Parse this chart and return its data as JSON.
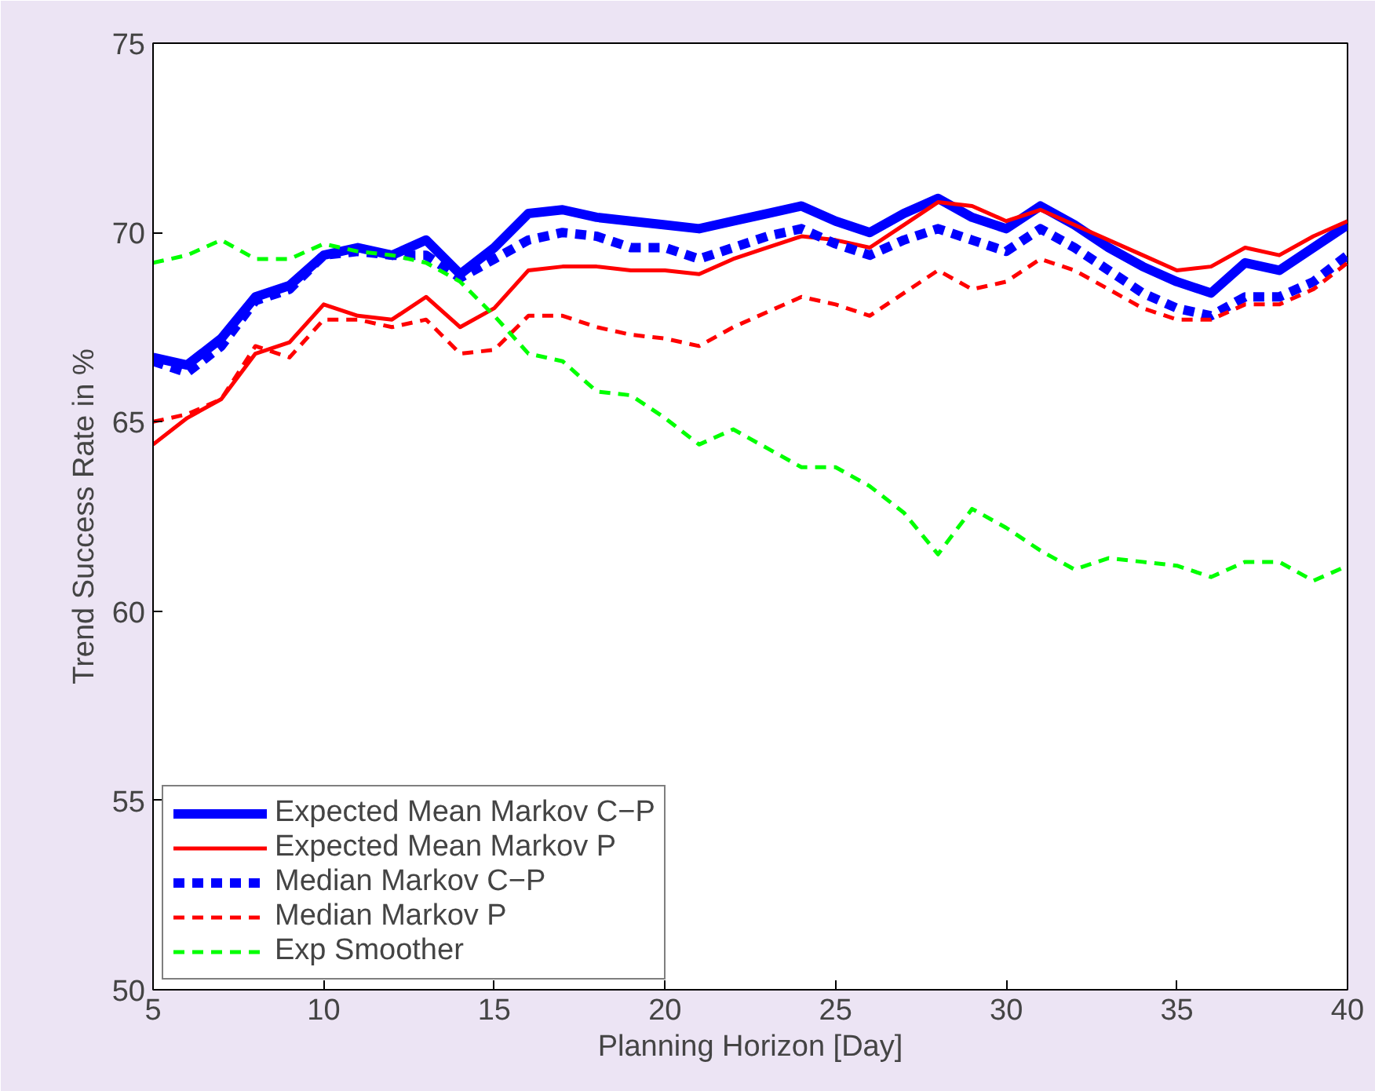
{
  "chart_data": {
    "type": "line",
    "xlabel": "Planning Horizon [Day]",
    "ylabel": "Trend Success Rate in %",
    "x": [
      5,
      6,
      7,
      8,
      9,
      10,
      11,
      12,
      13,
      14,
      15,
      16,
      17,
      18,
      19,
      20,
      21,
      22,
      23,
      24,
      25,
      26,
      27,
      28,
      29,
      30,
      31,
      32,
      33,
      34,
      35,
      36,
      37,
      38,
      39,
      40
    ],
    "xlim": [
      5,
      40
    ],
    "ylim": [
      50,
      75
    ],
    "xticks": [
      5,
      10,
      15,
      20,
      25,
      30,
      35,
      40
    ],
    "yticks": [
      50,
      55,
      60,
      65,
      70,
      75
    ],
    "grid": false,
    "legend": "bottom left",
    "marker": "none",
    "series": [
      {
        "name": "Expected Mean Markov C−P",
        "color": "#0000ff",
        "line_style": "solid",
        "values": [
          66.7,
          66.5,
          67.2,
          68.3,
          68.6,
          69.4,
          69.6,
          69.4,
          69.8,
          68.9,
          69.6,
          70.5,
          70.6,
          70.4,
          70.3,
          70.2,
          70.1,
          70.3,
          70.5,
          70.7,
          70.3,
          70.0,
          70.5,
          70.9,
          70.4,
          70.1,
          70.7,
          70.2,
          69.6,
          69.1,
          68.7,
          68.4,
          69.2,
          69.0,
          69.6,
          70.2
        ]
      },
      {
        "name": "Expected Mean Markov P",
        "color": "#ff0000",
        "line_style": "solid",
        "values": [
          64.4,
          65.1,
          65.6,
          66.8,
          67.1,
          68.1,
          67.8,
          67.7,
          68.3,
          67.5,
          68.0,
          69.0,
          69.1,
          69.1,
          69.0,
          69.0,
          68.9,
          69.3,
          69.6,
          69.9,
          69.8,
          69.6,
          70.2,
          70.8,
          70.7,
          70.3,
          70.6,
          70.2,
          69.8,
          69.4,
          69.0,
          69.1,
          69.6,
          69.4,
          69.9,
          70.3
        ]
      },
      {
        "name": "Median Markov C−P",
        "color": "#0000ff",
        "line_style": "dashed",
        "values": [
          66.6,
          66.3,
          67.0,
          68.2,
          68.5,
          69.4,
          69.5,
          69.4,
          69.4,
          68.8,
          69.3,
          69.8,
          70.0,
          69.9,
          69.6,
          69.6,
          69.3,
          69.6,
          69.9,
          70.1,
          69.7,
          69.4,
          69.8,
          70.1,
          69.8,
          69.5,
          70.1,
          69.6,
          69.0,
          68.4,
          68.0,
          67.8,
          68.3,
          68.3,
          68.7,
          69.4
        ]
      },
      {
        "name": "Median Markov P",
        "color": "#ff0000",
        "line_style": "dashed",
        "values": [
          65.0,
          65.2,
          65.6,
          67.0,
          66.7,
          67.7,
          67.7,
          67.5,
          67.7,
          66.8,
          66.9,
          67.8,
          67.8,
          67.5,
          67.3,
          67.2,
          67.0,
          67.5,
          67.9,
          68.3,
          68.1,
          67.8,
          68.4,
          69.0,
          68.5,
          68.7,
          69.3,
          69.0,
          68.5,
          68.0,
          67.7,
          67.7,
          68.1,
          68.1,
          68.5,
          69.2
        ]
      },
      {
        "name": "Exp Smoother",
        "color": "#00ff00",
        "line_style": "dashed",
        "values": [
          69.2,
          69.4,
          69.8,
          69.3,
          69.3,
          69.7,
          69.5,
          69.4,
          69.2,
          68.7,
          67.8,
          66.8,
          66.6,
          65.8,
          65.7,
          65.1,
          64.4,
          64.8,
          64.3,
          63.8,
          63.8,
          63.3,
          62.6,
          61.5,
          62.7,
          62.2,
          61.6,
          61.1,
          61.4,
          61.3,
          61.2,
          60.9,
          61.3,
          61.3,
          60.8,
          61.2
        ]
      }
    ]
  }
}
